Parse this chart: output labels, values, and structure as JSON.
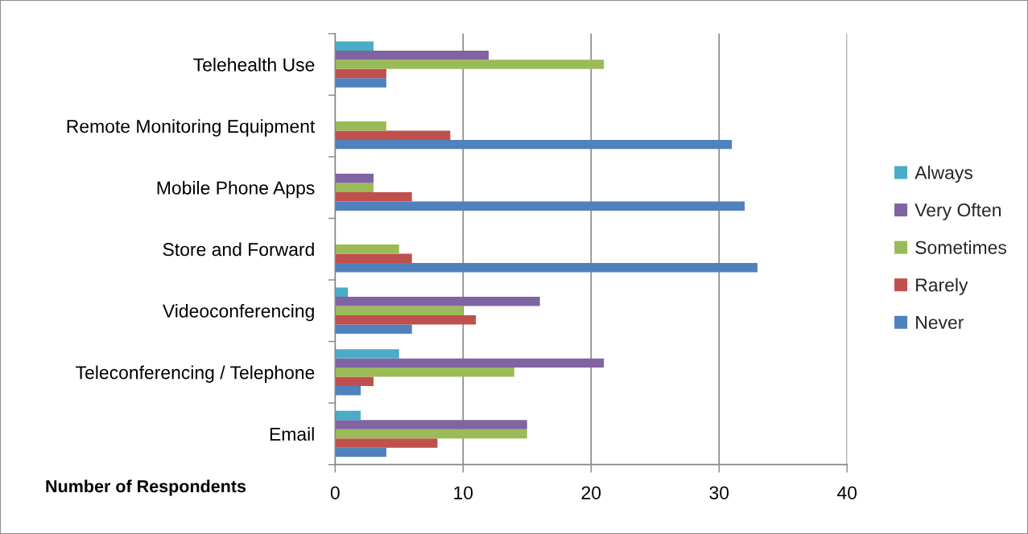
{
  "chart_data": {
    "type": "bar",
    "orientation": "horizontal",
    "xlabel": "Number of Respondents",
    "categories": [
      "Telehealth Use",
      "Remote Monitoring Equipment",
      "Mobile Phone Apps",
      "Store and Forward",
      "Videoconferencing",
      "Teleconferencing / Telephone",
      "Email"
    ],
    "series": [
      {
        "name": "Never",
        "color": "#4f81bd",
        "values": [
          4,
          31,
          32,
          33,
          6,
          2,
          4
        ]
      },
      {
        "name": "Rarely",
        "color": "#c0504d",
        "values": [
          4,
          9,
          6,
          6,
          11,
          3,
          8
        ]
      },
      {
        "name": "Sometimes",
        "color": "#9bbb59",
        "values": [
          21,
          4,
          3,
          5,
          10,
          14,
          15
        ]
      },
      {
        "name": "Very Often",
        "color": "#8064a2",
        "values": [
          12,
          0,
          3,
          0,
          16,
          21,
          15
        ]
      },
      {
        "name": "Always",
        "color": "#4bacc6",
        "values": [
          3,
          0,
          0,
          0,
          1,
          5,
          2
        ]
      }
    ],
    "xlim": [
      0,
      40
    ],
    "xticks": [
      0,
      10,
      20,
      30,
      40
    ],
    "grid": "x",
    "legend": "right"
  }
}
